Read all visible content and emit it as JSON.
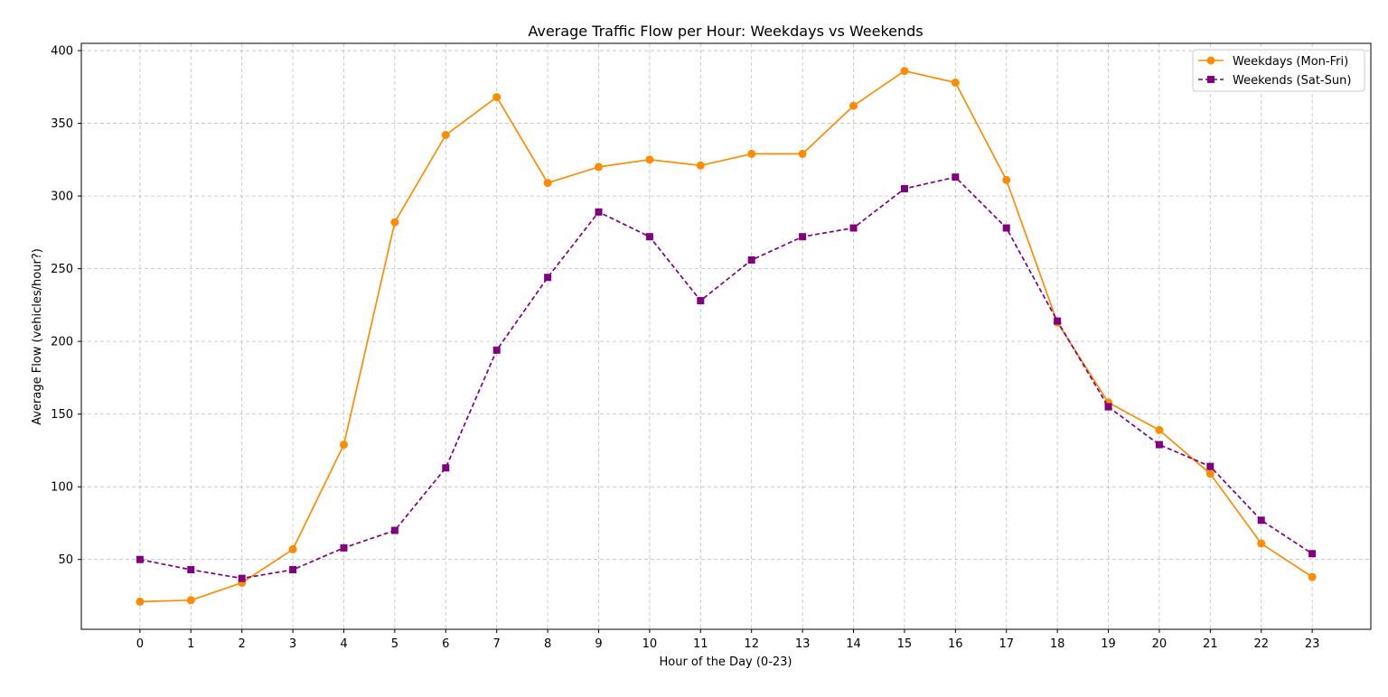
{
  "chart_data": {
    "type": "line",
    "title": "Average Traffic Flow per Hour: Weekdays vs Weekends",
    "xlabel": "Hour of the Day (0-23)",
    "ylabel": "Average Flow (vehicles/hour?)",
    "x": [
      0,
      1,
      2,
      3,
      4,
      5,
      6,
      7,
      8,
      9,
      10,
      11,
      12,
      13,
      14,
      15,
      16,
      17,
      18,
      19,
      20,
      21,
      22,
      23
    ],
    "xlim": [
      -1.15,
      24.15
    ],
    "ylim": [
      2,
      405
    ],
    "yticks": [
      50,
      100,
      150,
      200,
      250,
      300,
      350,
      400
    ],
    "grid": true,
    "legend_position": "top-right",
    "series": [
      {
        "name": "Weekdays (Mon-Fri)",
        "color": "#ff8c00",
        "line_style": "solid",
        "marker": "circle",
        "values": [
          21,
          22,
          34,
          57,
          129,
          282,
          342,
          368,
          309,
          320,
          325,
          321,
          329,
          329,
          362,
          386,
          378,
          311,
          213,
          158,
          139,
          109,
          61,
          38
        ]
      },
      {
        "name": "Weekends (Sat-Sun)",
        "color": "#800080",
        "line_style": "dashed",
        "marker": "square",
        "values": [
          50,
          43,
          37,
          43,
          58,
          70,
          113,
          194,
          244,
          289,
          272,
          228,
          256,
          272,
          278,
          305,
          313,
          278,
          214,
          155,
          129,
          114,
          77,
          54
        ]
      }
    ]
  }
}
